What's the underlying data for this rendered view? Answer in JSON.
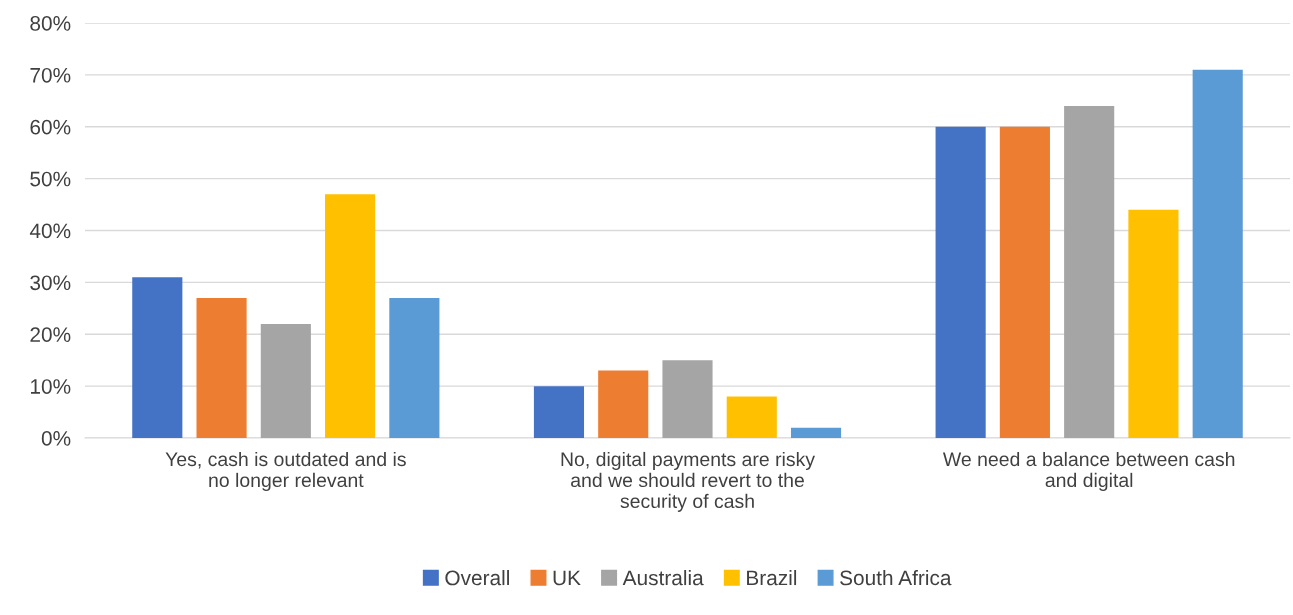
{
  "chart_data": {
    "type": "bar",
    "categories": [
      "Yes, cash is outdated and is no longer relevant",
      "No, digital payments are risky and we should revert to the security of cash",
      "We need a balance between cash and digital"
    ],
    "series": [
      {
        "name": "Overall",
        "color": "#4472c4",
        "values": [
          0.31,
          0.1,
          0.6
        ]
      },
      {
        "name": "UK",
        "color": "#ed7d31",
        "values": [
          0.27,
          0.13,
          0.6
        ]
      },
      {
        "name": "Australia",
        "color": "#a5a5a5",
        "values": [
          0.22,
          0.15,
          0.64
        ]
      },
      {
        "name": "Brazil",
        "color": "#ffc000",
        "values": [
          0.47,
          0.08,
          0.44
        ]
      },
      {
        "name": "South Africa",
        "color": "#5b9bd5",
        "values": [
          0.27,
          0.02,
          0.71
        ]
      }
    ],
    "ylim": [
      0,
      0.8
    ],
    "yticks": [
      {
        "value": 0,
        "label": "0%"
      },
      {
        "value": 0.1,
        "label": "10%"
      },
      {
        "value": 0.2,
        "label": "20%"
      },
      {
        "value": 0.3,
        "label": "30%"
      },
      {
        "value": 0.4,
        "label": "40%"
      },
      {
        "value": 0.5,
        "label": "50%"
      },
      {
        "value": 0.6,
        "label": "60%"
      },
      {
        "value": 0.7,
        "label": "70%"
      },
      {
        "value": 0.8,
        "label": "80%"
      }
    ],
    "grid": "y",
    "legend": "bottom"
  }
}
